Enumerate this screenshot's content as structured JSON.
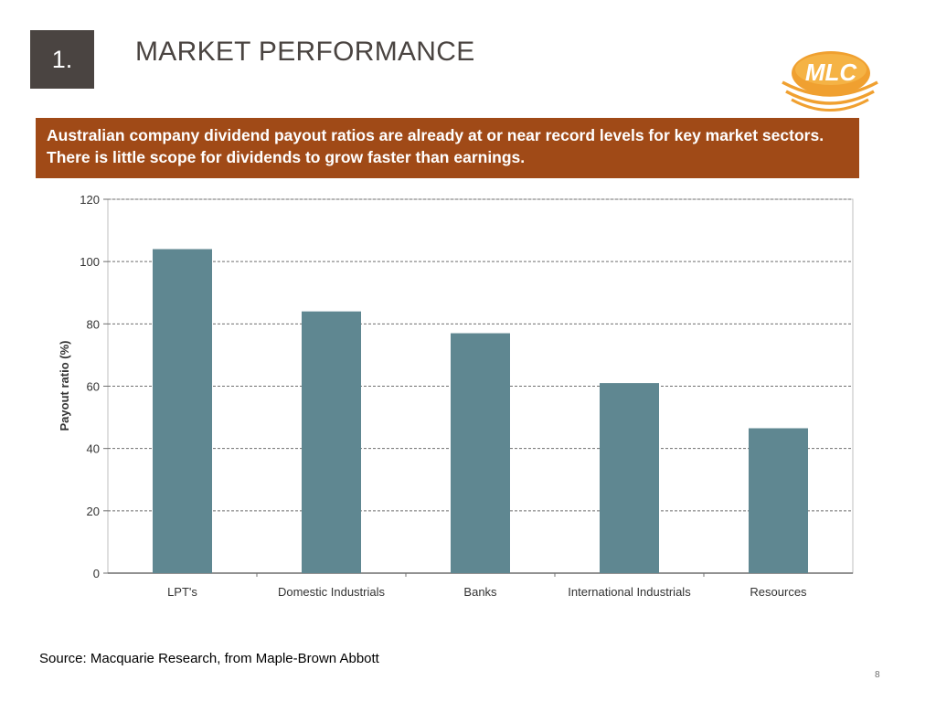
{
  "slide": {
    "section_number": "1.",
    "title": "MARKET PERFORMANCE",
    "banner_text": "Australian company dividend payout ratios are already at or near record levels for key market sectors. There is little scope for dividends to grow faster than earnings.",
    "source": "Source: Macquarie Research, from Maple-Brown Abbott",
    "page_number": "8"
  },
  "logo": {
    "text": "MLC",
    "icon": "mlc-logo",
    "color": "#f0a030"
  },
  "colors": {
    "bar": "#5f8791",
    "banner": "#a04a17",
    "section_box": "#4a4441"
  },
  "chart_data": {
    "type": "bar",
    "title": "",
    "xlabel": "",
    "ylabel": "Payout ratio (%)",
    "categories": [
      "LPT's",
      "Domestic Industrials",
      "Banks",
      "International Industrials",
      "Resources"
    ],
    "values": [
      104,
      84,
      77,
      61,
      46.5
    ],
    "ylim": [
      0,
      120
    ],
    "yticks": [
      0,
      20,
      40,
      60,
      80,
      100,
      120
    ],
    "grid": true,
    "grid_style": "dashed",
    "legend": "none"
  }
}
